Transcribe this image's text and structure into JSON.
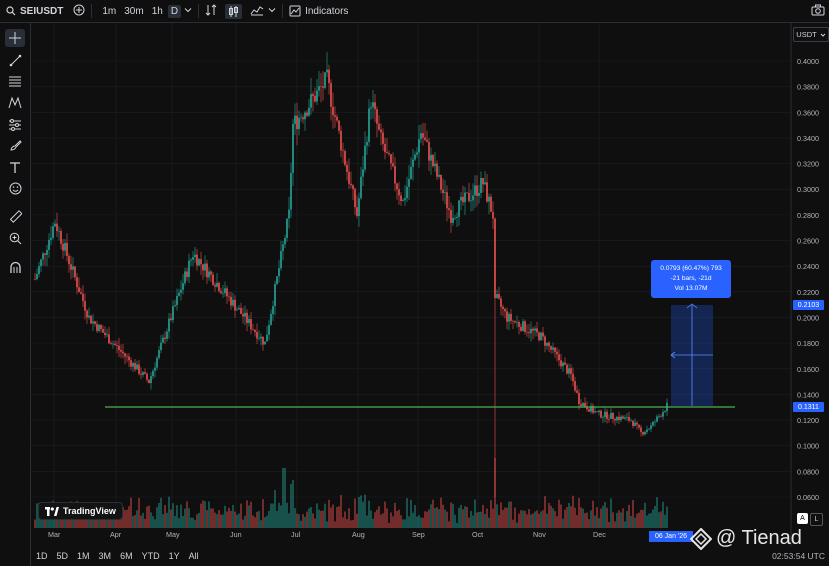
{
  "toolbar": {
    "symbol": "SEIUSDT",
    "timeframes": [
      "1m",
      "30m",
      "1h",
      "D"
    ],
    "active_timeframe": "D",
    "indicators_label": "Indicators"
  },
  "price_axis": {
    "currency": "USDT",
    "labels": [
      "0.4000",
      "0.3800",
      "0.3600",
      "0.3400",
      "0.3200",
      "0.3000",
      "0.2800",
      "0.2600",
      "0.2400",
      "0.2200",
      "0.2000",
      "0.1800",
      "0.1600",
      "0.1400",
      "0.1200",
      "0.1000",
      "0.0800",
      "0.0600"
    ],
    "scale_auto": "A",
    "scale_log": "L"
  },
  "time_axis": {
    "labels": [
      "Mar",
      "Apr",
      "May",
      "Jun",
      "Jul",
      "Aug",
      "Sep",
      "Oct",
      "Nov",
      "Dec"
    ],
    "crosshair_date": "06 Jan '26"
  },
  "range_buttons": [
    "1D",
    "5D",
    "1M",
    "3M",
    "6M",
    "YTD",
    "1Y",
    "All"
  ],
  "clock": "02:53:54 UTC",
  "logo_text": "TradingView",
  "watermark": "@ Tienad",
  "measure_tool": {
    "line1": "0.0793 (60.47%) 793",
    "line2": "-21 bars, -21d",
    "line3": "Vol 13.07M",
    "top_price": "0.2103",
    "bottom_price": "0.1311"
  },
  "colors": {
    "up": "#26a69a",
    "down": "#ef5350",
    "support_line": "#4caf50",
    "measure": "#2962ff"
  },
  "chart_data": {
    "type": "candlestick",
    "symbol": "SEIUSDT",
    "timeframe": "D",
    "ylim": [
      0.05,
      0.41
    ],
    "support_level": 0.1311,
    "key_points": [
      {
        "date": "Mar",
        "close": 0.28
      },
      {
        "date": "late Mar",
        "close": 0.14
      },
      {
        "date": "mid May",
        "close": 0.265
      },
      {
        "date": "early Jun",
        "close": 0.175
      },
      {
        "date": "mid Jul",
        "close": 0.385
      },
      {
        "date": "early Aug",
        "close": 0.275
      },
      {
        "date": "mid Aug",
        "close": 0.355
      },
      {
        "date": "early Sep",
        "close": 0.285
      },
      {
        "date": "mid Sep",
        "close": 0.345
      },
      {
        "date": "early Oct",
        "close": 0.305
      },
      {
        "date": "Oct 10",
        "close": 0.205
      },
      {
        "date": "Nov",
        "close": 0.19
      },
      {
        "date": "Dec",
        "close": 0.125
      },
      {
        "date": "late Dec",
        "close": 0.11
      },
      {
        "date": "06 Jan '26",
        "close": 0.1311
      }
    ]
  }
}
